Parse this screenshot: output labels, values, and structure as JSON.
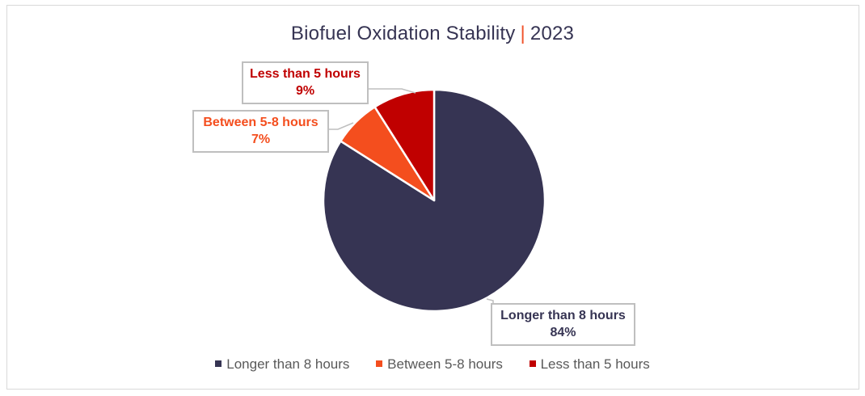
{
  "chart_data": {
    "type": "pie",
    "title": "Biofuel Oxidation Stability | 2023",
    "title_main": "Biofuel Oxidation Stability",
    "title_separator": "|",
    "title_year": "2023",
    "categories": [
      "Longer than 8 hours",
      "Between 5-8 hours",
      "Less than 5 hours"
    ],
    "values": [
      84,
      7,
      9
    ],
    "unit": "%",
    "colors": [
      "#363453",
      "#f44e1e",
      "#c00000"
    ],
    "data_labels": [
      {
        "category": "Longer than 8 hours",
        "value": "84%"
      },
      {
        "category": "Between 5-8 hours",
        "value": "7%"
      },
      {
        "category": "Less than 5 hours",
        "value": "9%"
      }
    ],
    "legend_position": "bottom"
  },
  "labels": {
    "longer": {
      "name": "Longer than 8 hours",
      "pct": "84%"
    },
    "between": {
      "name": "Between 5-8 hours",
      "pct": "7%"
    },
    "less": {
      "name": "Less than 5 hours",
      "pct": "9%"
    }
  },
  "legend": {
    "items": [
      {
        "label": "Longer than 8 hours",
        "color": "#363453"
      },
      {
        "label": "Between 5-8 hours",
        "color": "#f44e1e"
      },
      {
        "label": "Less than 5 hours",
        "color": "#c00000"
      }
    ]
  }
}
